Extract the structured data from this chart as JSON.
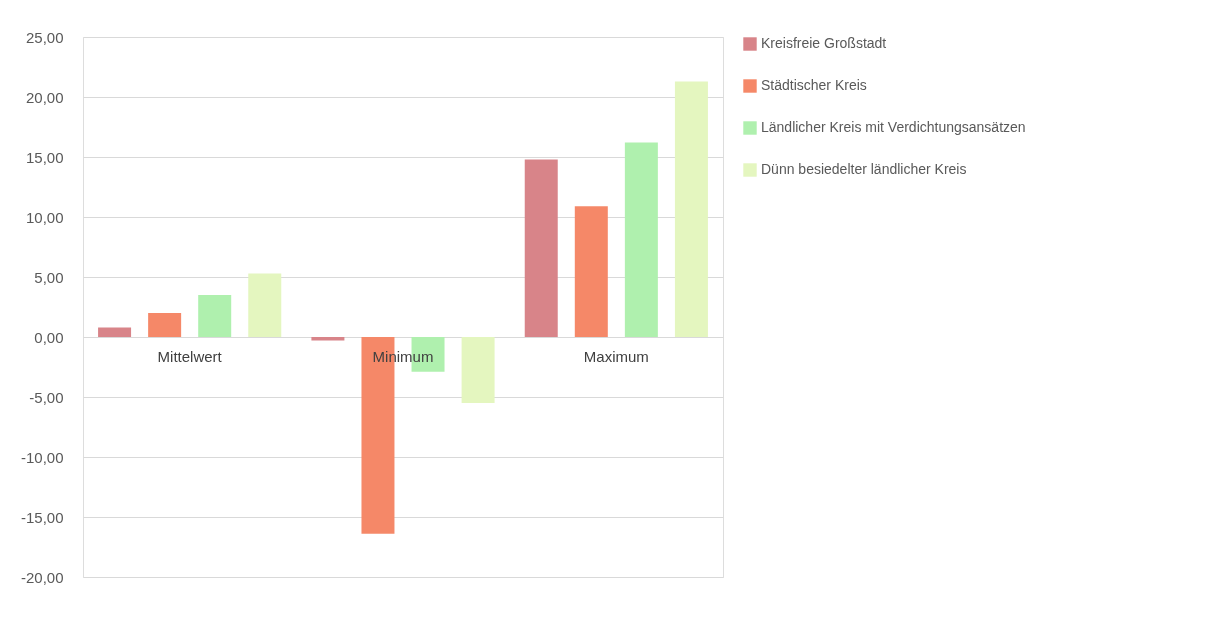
{
  "chart_data": {
    "type": "bar",
    "categories": [
      "Mittelwert",
      "Minimum",
      "Maximum"
    ],
    "series": [
      {
        "name": "Kreisfreie Großstadt",
        "color": "#d88489",
        "values": [
          0.8,
          -0.3,
          14.8
        ]
      },
      {
        "name": "Städtischer Kreis",
        "color": "#f58868",
        "values": [
          2.0,
          -16.4,
          10.9
        ]
      },
      {
        "name": "Ländlicher Kreis mit Verdichtungsansätzen",
        "color": "#aff0ae",
        "values": [
          3.5,
          -2.9,
          16.2
        ]
      },
      {
        "name": "Dünn besiedelter ländlicher Kreis",
        "color": "#e4f6bf",
        "values": [
          5.3,
          -5.5,
          21.3
        ]
      }
    ],
    "ylim": [
      -20,
      25
    ],
    "yticks": [
      {
        "value": -20,
        "label": "-20,00"
      },
      {
        "value": -15,
        "label": "-15,00"
      },
      {
        "value": -10,
        "label": "-10,00"
      },
      {
        "value": -5,
        "label": "-5,00"
      },
      {
        "value": 0,
        "label": "0,00"
      },
      {
        "value": 5,
        "label": "5,00"
      },
      {
        "value": 10,
        "label": "10,00"
      },
      {
        "value": 15,
        "label": "15,00"
      },
      {
        "value": 20,
        "label": "20,00"
      },
      {
        "value": 25,
        "label": "25,00"
      }
    ],
    "grid": "y",
    "legend": "right"
  }
}
